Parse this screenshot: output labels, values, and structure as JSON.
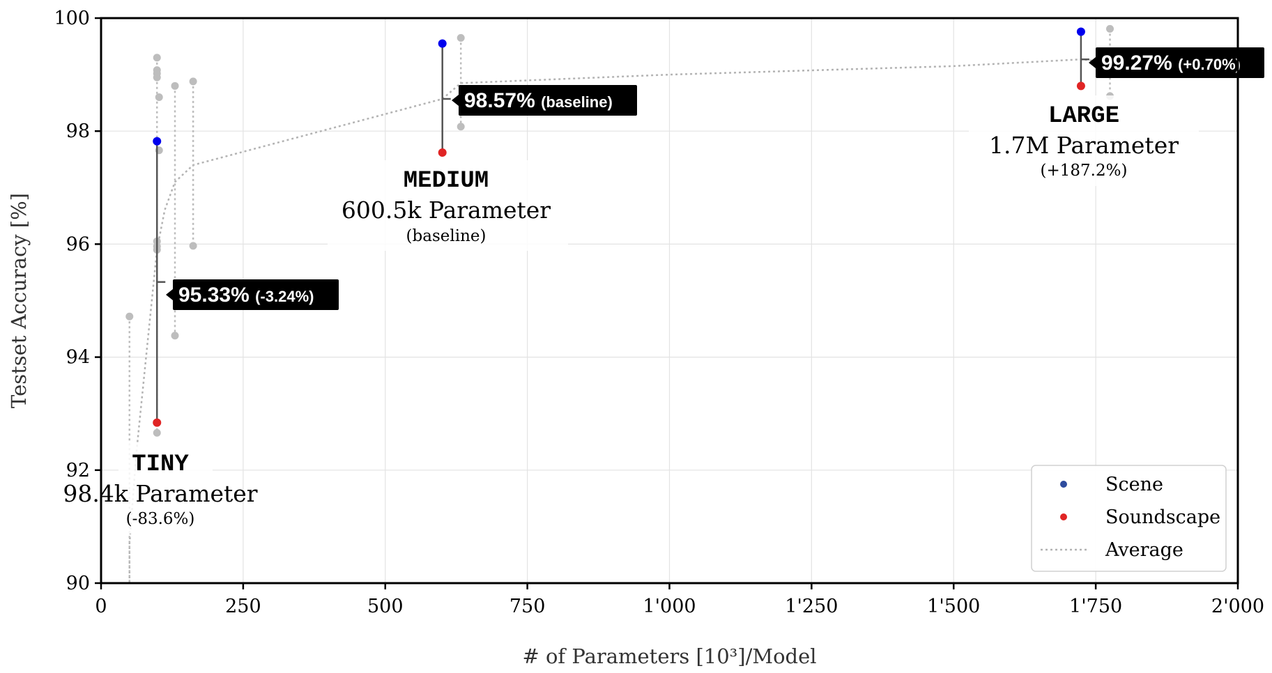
{
  "chart_data": {
    "type": "scatter",
    "xlabel": "# of Parameters [10³]/Model",
    "ylabel": "Testset Accuracy [%]",
    "xlim": [
      0,
      2000
    ],
    "ylim": [
      90,
      100
    ],
    "x_ticks": [
      0,
      250,
      500,
      750,
      1000,
      1250,
      1500,
      1750,
      2000
    ],
    "x_tick_labels": [
      "0",
      "250",
      "500",
      "750",
      "1'000",
      "1'250",
      "1'500",
      "1'750",
      "2'000"
    ],
    "y_ticks": [
      90,
      92,
      94,
      96,
      98,
      100
    ],
    "y_tick_labels": [
      "90",
      "92",
      "94",
      "96",
      "98",
      "100"
    ],
    "grid": true,
    "legend_position": "bottom-right",
    "legend": [
      {
        "label": "Scene",
        "marker": "dot",
        "color": "#2e4c9e"
      },
      {
        "label": "Soundscape",
        "marker": "dot",
        "color": "#e02424"
      },
      {
        "label": "Average",
        "marker": "dotted-line",
        "color": "#b3b3b3"
      }
    ],
    "colors": {
      "scene": "#0000ee",
      "soundscape": "#e02424",
      "other": "#bdbdbd",
      "range_line": "#555555",
      "average": "#b3b3b3"
    },
    "models": [
      {
        "name": "TINY",
        "params_label": "98.4k Parameter",
        "delta_label": "(-83.6%)",
        "x": 98.4,
        "scene": 97.82,
        "soundscape": 92.84,
        "average": 95.33,
        "callout_main": "95.33%",
        "callout_sub": "(-3.24%)"
      },
      {
        "name": "MEDIUM",
        "params_label": "600.5k Parameter",
        "delta_label": "(baseline)",
        "x": 600.5,
        "scene": 99.55,
        "soundscape": 97.62,
        "average": 98.57,
        "callout_main": "98.57%",
        "callout_sub": "(baseline)"
      },
      {
        "name": "LARGE",
        "params_label": "1.7M Parameter",
        "delta_label": "(+187.2%)",
        "x": 1724,
        "scene": 99.76,
        "soundscape": 98.8,
        "average": 99.27,
        "callout_main": "99.27%",
        "callout_sub": "(+0.70%)"
      }
    ],
    "other_variants": [
      {
        "x": 50,
        "high": 94.72,
        "low": 90.0,
        "average": 92.3
      },
      {
        "x": 98.4,
        "high": 99.3,
        "low": 92.66,
        "average": 95.9
      },
      {
        "x": 130,
        "high": 98.8,
        "low": 94.38,
        "average": 97.1
      },
      {
        "x": 162,
        "high": 98.88,
        "low": 95.97,
        "average": 97.4
      },
      {
        "x": 633,
        "high": 99.65,
        "low": 98.08,
        "average": 98.85
      },
      {
        "x": 1775,
        "high": 99.81,
        "low": 98.62,
        "average": 99.22
      }
    ],
    "tiny_cluster_extra_points": [
      99.08,
      99.02,
      98.95,
      96.05,
      95.96,
      95.9,
      97.66,
      98.6
    ],
    "average_curve": [
      [
        50,
        90.0
      ],
      [
        50,
        90.7
      ],
      [
        62,
        92.3
      ],
      [
        98.4,
        95.9
      ],
      [
        112,
        96.6
      ],
      [
        130,
        97.1
      ],
      [
        162,
        97.4
      ],
      [
        600.5,
        98.57
      ],
      [
        633,
        98.85
      ],
      [
        1000,
        99.0
      ],
      [
        1500,
        99.15
      ],
      [
        1724,
        99.27
      ],
      [
        1775,
        99.22
      ]
    ]
  }
}
